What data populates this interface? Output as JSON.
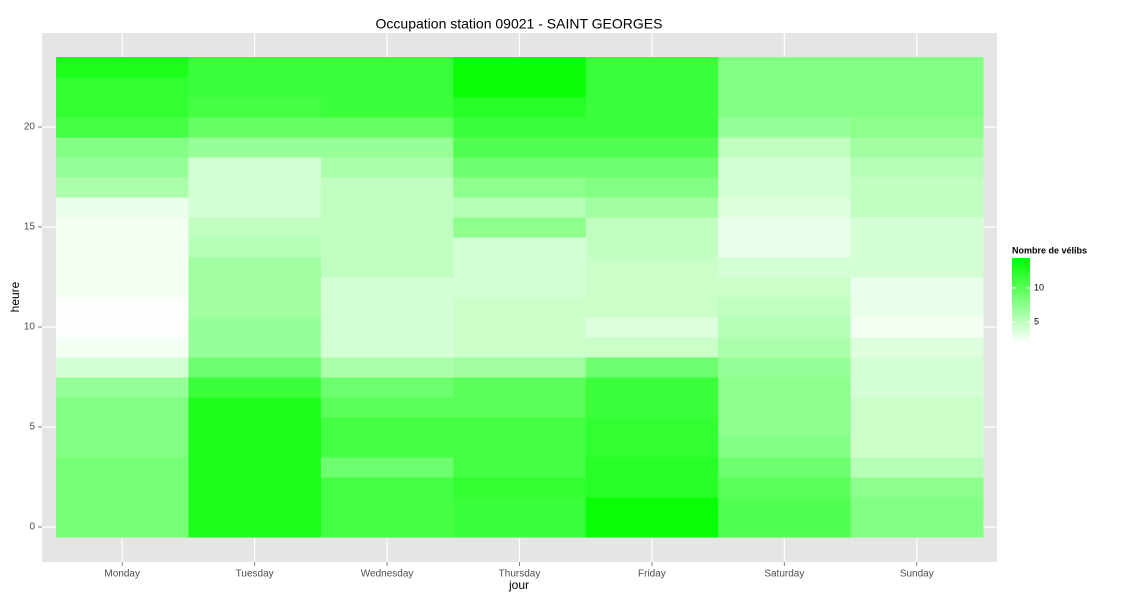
{
  "chart_data": {
    "type": "heatmap",
    "title": "Occupation station 09021 - SAINT GEORGES",
    "x_label": "jour",
    "y_label": "heure",
    "categories": [
      "Monday",
      "Tuesday",
      "Wednesday",
      "Thursday",
      "Friday",
      "Saturday",
      "Sunday"
    ],
    "y": [
      0,
      1,
      2,
      3,
      4,
      5,
      6,
      7,
      8,
      9,
      10,
      11,
      12,
      13,
      14,
      15,
      16,
      17,
      18,
      19,
      20,
      21,
      22,
      23
    ],
    "values": [
      [
        8.5,
        8.5,
        8.5,
        8.5,
        8,
        8,
        8,
        7,
        4,
        2.5,
        2,
        2,
        2.5,
        2.5,
        2.5,
        2.5,
        3,
        6,
        7,
        8,
        11,
        12,
        12,
        13
      ],
      [
        13,
        13,
        13,
        13,
        13,
        13,
        13,
        11.5,
        9,
        7,
        7,
        6.5,
        6.5,
        6.5,
        5.5,
        5,
        4,
        4,
        4,
        7,
        9.5,
        11,
        11.5,
        11.5
      ],
      [
        11,
        11,
        11,
        9,
        11,
        11,
        10,
        9,
        6,
        4,
        4,
        4,
        4,
        5,
        5,
        5,
        5,
        5,
        6,
        7,
        9.5,
        11.5,
        11.5,
        11.5
      ],
      [
        11.5,
        11.5,
        12,
        11,
        11,
        11,
        10,
        10,
        6.5,
        4.5,
        4.5,
        4.5,
        4,
        4,
        4,
        7.5,
        5.5,
        7.5,
        9,
        10.5,
        11.5,
        12.5,
        14,
        14
      ],
      [
        14,
        14,
        12.5,
        12.5,
        12,
        12,
        11.5,
        11.5,
        9,
        4.5,
        3.5,
        4.5,
        4.5,
        4.5,
        5,
        5,
        6.5,
        8,
        9,
        10.5,
        11.5,
        11.5,
        11.5,
        11.5
      ],
      [
        10.5,
        10.5,
        10,
        9,
        8,
        7.5,
        7.5,
        7.5,
        7,
        6,
        5.5,
        5,
        4.5,
        4,
        3,
        3,
        3.5,
        4,
        4,
        5,
        7,
        8,
        8,
        8
      ],
      [
        8,
        8,
        7.5,
        5.5,
        4.5,
        4.5,
        4.5,
        4,
        4,
        3.5,
        2.5,
        3,
        3,
        4,
        4,
        4,
        5,
        5,
        5.5,
        6.5,
        7.5,
        8,
        8,
        8
      ]
    ],
    "ylim": [
      -1.75,
      24.7
    ],
    "yticks": [
      0,
      5,
      10,
      15,
      20
    ],
    "grid": true,
    "colorbar": {
      "title": "Nombre de vélibs",
      "low": "#ffffff",
      "high": "#00ff00",
      "lim": [
        1.9,
        14.4
      ],
      "ticks": [
        5,
        10
      ]
    }
  }
}
